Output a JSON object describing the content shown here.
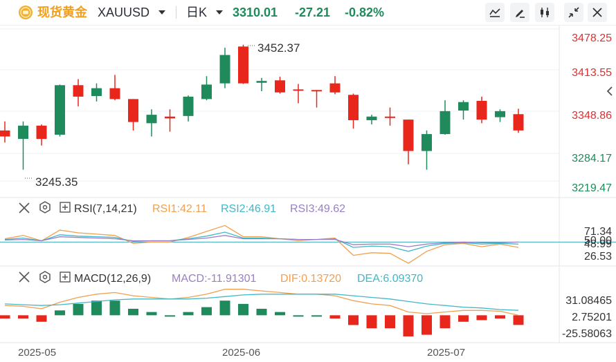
{
  "header": {
    "symbol_name": "现货黄金",
    "symbol_code": "XAUUSD",
    "timeframe": "日K",
    "last_price": "3310.01",
    "change": "-27.21",
    "change_pct": "-0.82%",
    "icons": [
      "coin-icon",
      "chevron-down-icon",
      "line-chart-icon",
      "pencil-icon",
      "candles-icon",
      "shrink-icon",
      "close-icon"
    ]
  },
  "colors": {
    "up": "#1f8a5c",
    "down": "#e8261c",
    "down_text": "#e02f2f",
    "rsi1": "#f0a050",
    "rsi2": "#40b8c8",
    "rsi3": "#9b7ec8",
    "dif": "#f0a050",
    "dea": "#40b8c8",
    "macd_label": "#9b7ec8",
    "coin": "#f0b030"
  },
  "main_chart": {
    "price_labels": [
      "3478.25",
      "3413.55",
      "3348.86",
      "3284.17",
      "3219.47"
    ],
    "max_label": "3452.37",
    "min_label": "3245.35",
    "collapse_icon": "chevron-left-icon"
  },
  "rsi": {
    "title": "RSI(7,14,21)",
    "rsi1_label": "RSI1:42.11",
    "rsi2_label": "RSI2:46.91",
    "rsi3_label": "RSI3:49.62",
    "axis_labels": [
      "71.34",
      "50.00",
      "48.99",
      "26.53"
    ]
  },
  "macd": {
    "title": "MACD(12,26,9)",
    "macd_label": "MACD:-11.91301",
    "dif_label": "DIF:0.13720",
    "dea_label": "DEA:6.09370",
    "axis_labels": [
      "31.08465",
      "2.75201",
      "-25.58063"
    ]
  },
  "x_axis": {
    "labels": [
      "2025-05",
      "2025-06",
      "2025-07"
    ]
  },
  "chart_data": {
    "type": "candlestick",
    "title": "现货黄金 XAUUSD 日K",
    "y_range": [
      3200,
      3478
    ],
    "candles": [
      {
        "o": 3310,
        "h": 3325,
        "l": 3290,
        "c": 3300
      },
      {
        "o": 3296,
        "h": 3325,
        "l": 3245,
        "c": 3318
      },
      {
        "o": 3318,
        "h": 3320,
        "l": 3285,
        "c": 3296
      },
      {
        "o": 3303,
        "h": 3386,
        "l": 3300,
        "c": 3385
      },
      {
        "o": 3385,
        "h": 3395,
        "l": 3350,
        "c": 3366
      },
      {
        "o": 3367,
        "h": 3388,
        "l": 3358,
        "c": 3380
      },
      {
        "o": 3380,
        "h": 3402,
        "l": 3360,
        "c": 3362
      },
      {
        "o": 3362,
        "h": 3362,
        "l": 3310,
        "c": 3324
      },
      {
        "o": 3322,
        "h": 3345,
        "l": 3300,
        "c": 3336
      },
      {
        "o": 3333,
        "h": 3345,
        "l": 3308,
        "c": 3330
      },
      {
        "o": 3334,
        "h": 3368,
        "l": 3325,
        "c": 3366
      },
      {
        "o": 3362,
        "h": 3400,
        "l": 3360,
        "c": 3386
      },
      {
        "o": 3388,
        "h": 3447,
        "l": 3380,
        "c": 3435
      },
      {
        "o": 3449,
        "h": 3452,
        "l": 3387,
        "c": 3388
      },
      {
        "o": 3389,
        "h": 3397,
        "l": 3375,
        "c": 3392
      },
      {
        "o": 3393,
        "h": 3399,
        "l": 3371,
        "c": 3373
      },
      {
        "o": 3378,
        "h": 3387,
        "l": 3355,
        "c": 3377
      },
      {
        "o": 3377,
        "h": 3377,
        "l": 3348,
        "c": 3375
      },
      {
        "o": 3388,
        "h": 3400,
        "l": 3370,
        "c": 3373
      },
      {
        "o": 3369,
        "h": 3371,
        "l": 3313,
        "c": 3327
      },
      {
        "o": 3327,
        "h": 3336,
        "l": 3320,
        "c": 3333
      },
      {
        "o": 3333,
        "h": 3348,
        "l": 3318,
        "c": 3331
      },
      {
        "o": 3328,
        "h": 3328,
        "l": 3254,
        "c": 3276
      },
      {
        "o": 3276,
        "h": 3310,
        "l": 3245,
        "c": 3304
      },
      {
        "o": 3304,
        "h": 3360,
        "l": 3303,
        "c": 3342
      },
      {
        "o": 3343,
        "h": 3360,
        "l": 3328,
        "c": 3357
      },
      {
        "o": 3359,
        "h": 3366,
        "l": 3322,
        "c": 3328
      },
      {
        "o": 3332,
        "h": 3345,
        "l": 3324,
        "c": 3342
      },
      {
        "o": 3337,
        "h": 3346,
        "l": 3306,
        "c": 3310
      }
    ],
    "rsi": {
      "y_range": [
        15,
        90
      ],
      "rsi1": [
        55,
        60,
        52,
        68,
        64,
        62,
        60,
        48,
        50,
        50,
        57,
        66,
        75,
        58,
        58,
        55,
        52,
        54,
        56,
        30,
        34,
        33,
        18,
        36,
        46,
        48,
        43,
        47,
        42
      ],
      "rsi2": [
        54,
        56,
        52,
        61,
        59,
        58,
        57,
        51,
        52,
        52,
        55,
        59,
        65,
        56,
        56,
        55,
        54,
        54,
        55,
        42,
        44,
        43,
        36,
        44,
        48,
        49,
        47,
        48,
        47
      ],
      "rsi3": [
        53,
        54,
        52,
        58,
        57,
        56,
        55,
        52,
        52,
        52,
        54,
        56,
        60,
        55,
        55,
        55,
        54,
        54,
        54,
        46,
        47,
        47,
        43,
        47,
        49,
        50,
        49,
        49,
        50
      ]
    },
    "macd": {
      "y_range": [
        -32,
        36
      ],
      "dif": [
        12,
        11,
        8,
        16,
        22,
        26,
        28,
        24,
        22,
        20,
        22,
        26,
        32,
        32,
        30,
        28,
        26,
        26,
        24,
        18,
        14,
        12,
        4,
        2,
        4,
        6,
        6,
        5,
        0.14
      ],
      "dea": [
        14,
        13,
        12,
        13,
        15,
        17,
        19,
        20,
        20,
        20,
        20,
        21,
        23,
        25,
        26,
        26,
        26,
        26,
        26,
        24,
        22,
        20,
        17,
        14,
        12,
        10,
        9,
        7,
        6.09
      ],
      "macd": [
        -4,
        -4,
        -8,
        6,
        14,
        18,
        18,
        8,
        4,
        0,
        4,
        10,
        18,
        14,
        8,
        4,
        0,
        0,
        -4,
        -12,
        -16,
        -16,
        -26,
        -24,
        -16,
        -8,
        -6,
        -4,
        -11.9
      ]
    }
  }
}
